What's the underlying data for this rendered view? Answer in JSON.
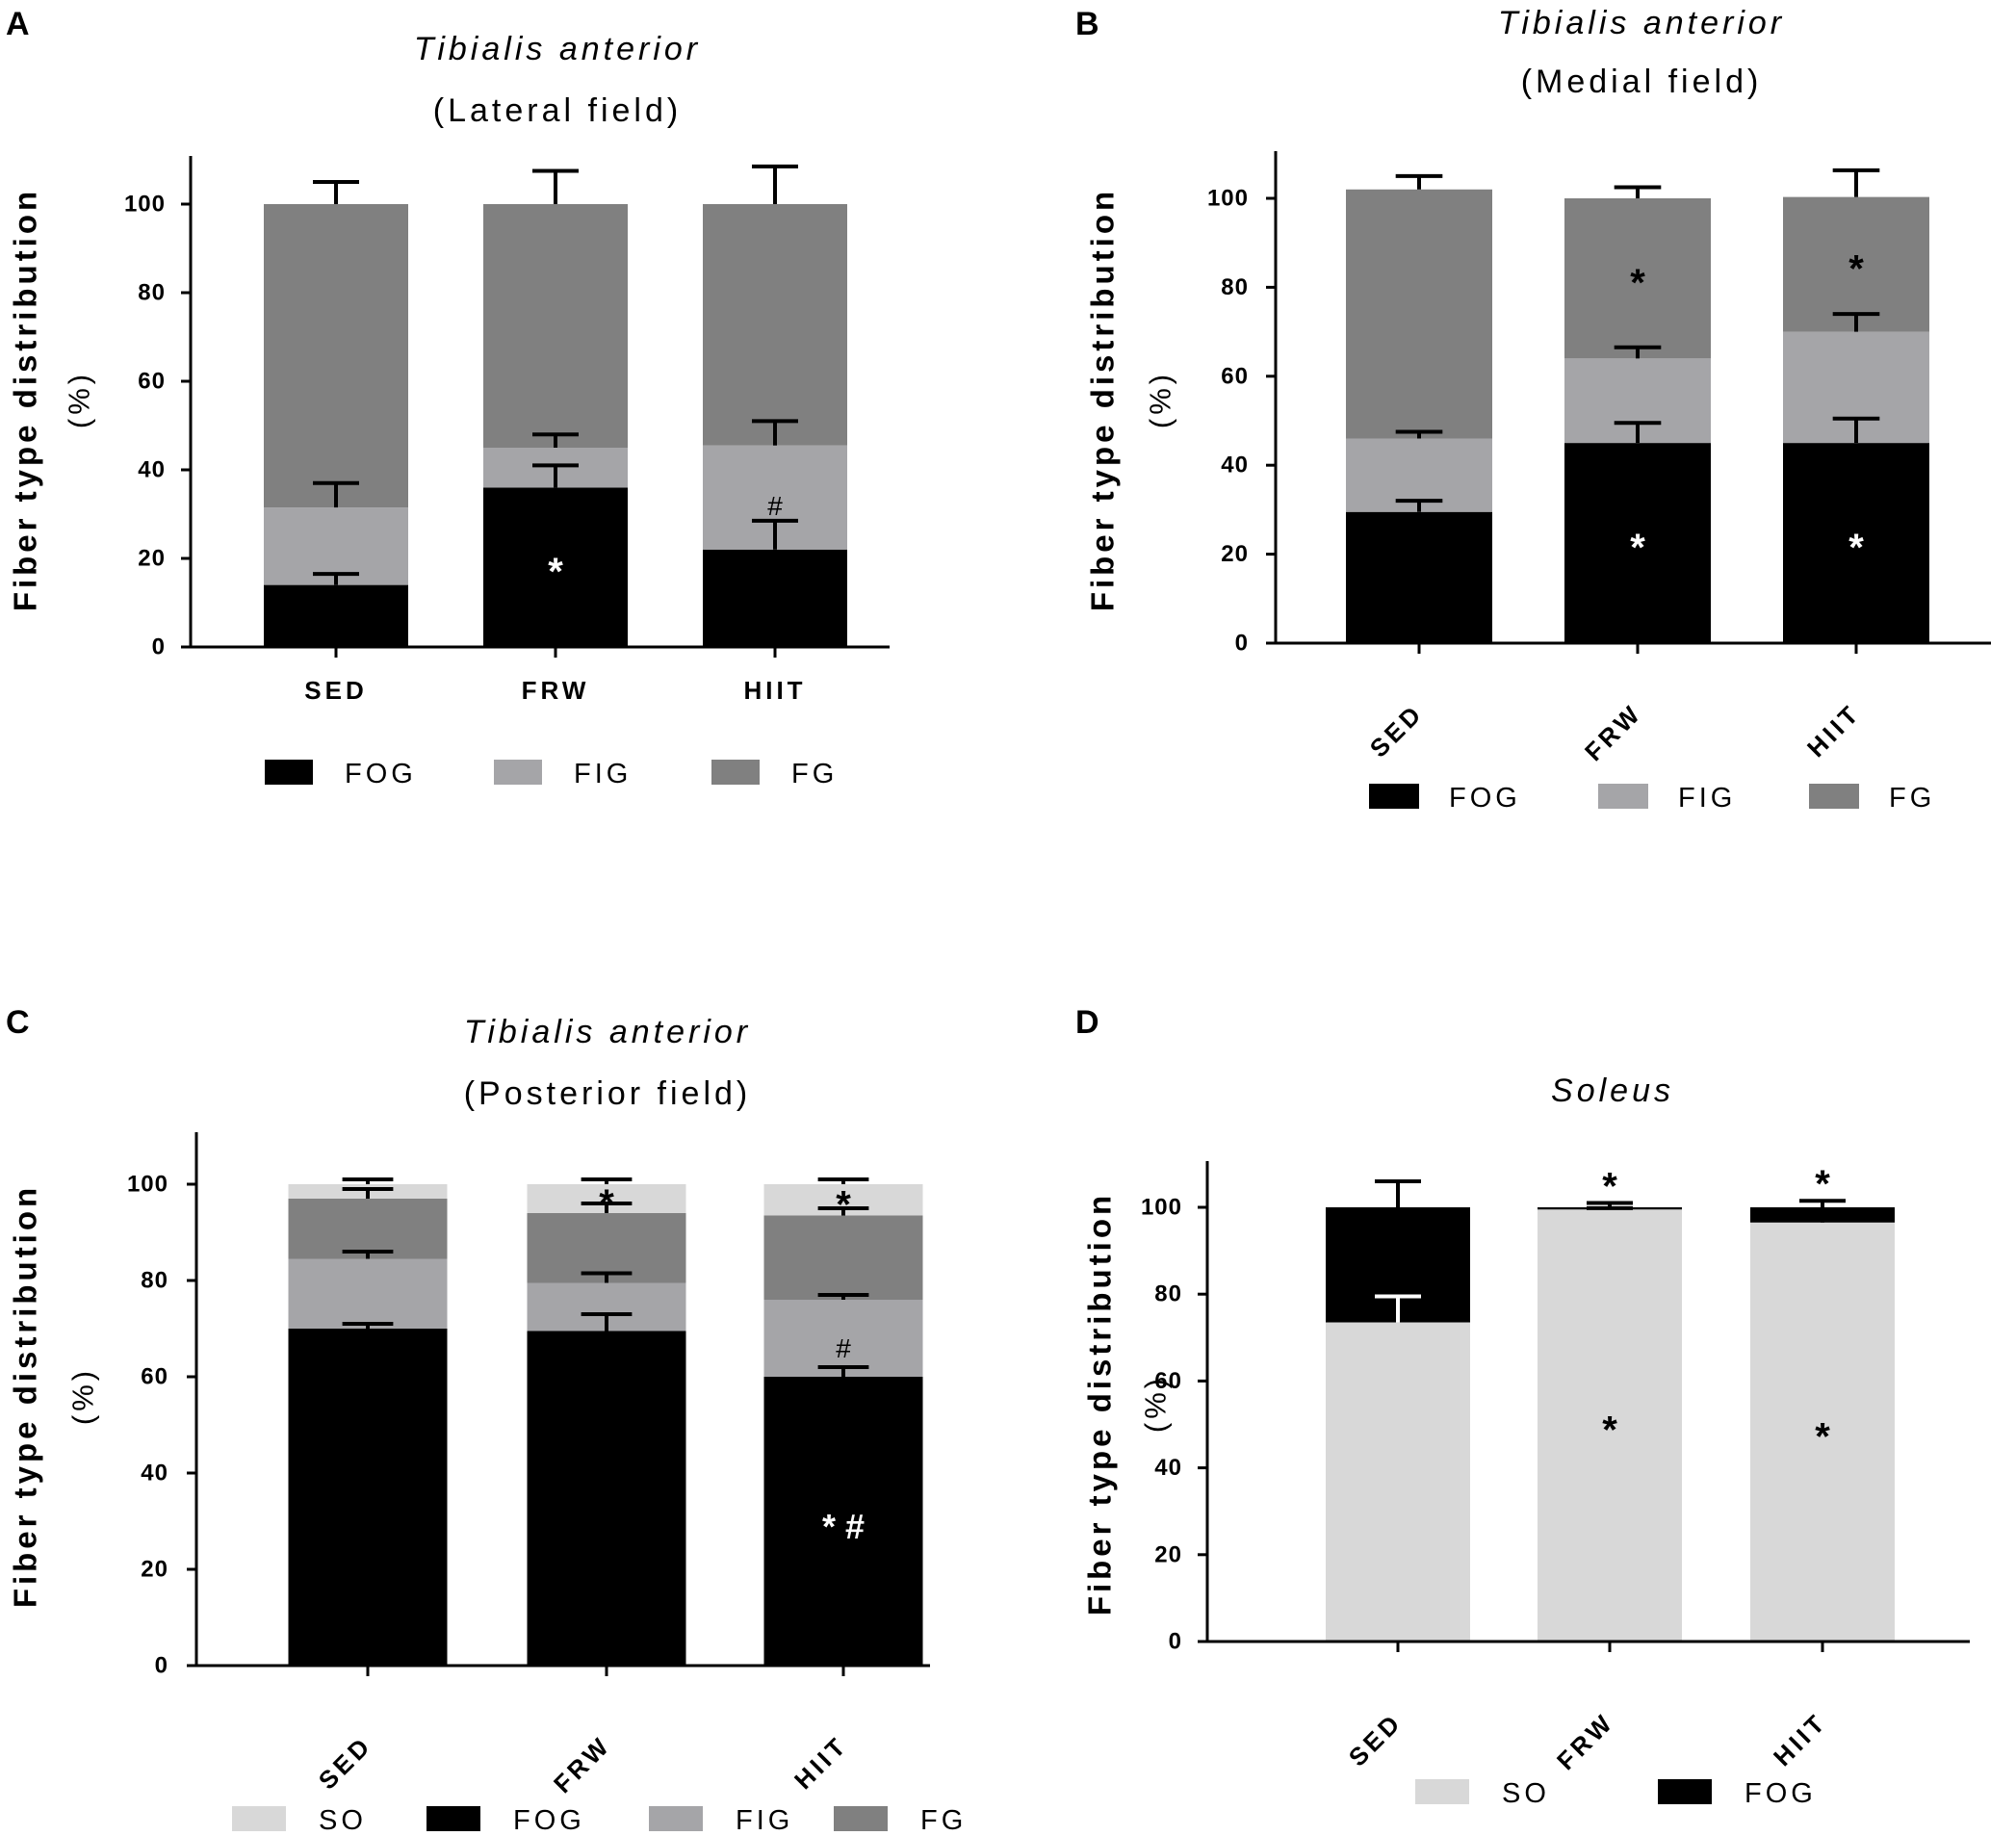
{
  "colors": {
    "SO": "#d8d8d8",
    "FOG": "#000000",
    "FIG": "#a5a5a8",
    "FG": "#808080",
    "err_dark": "#000000",
    "err_light": "#ffffff"
  },
  "chart_data": [
    {
      "panel": "A",
      "type": "bar",
      "stacked": true,
      "title": "Tibialis anterior",
      "subtitle": "(Lateral field)",
      "ylabel": "Fiber type distribution",
      "ylabel_unit": "(%)",
      "ylim": [
        0,
        110
      ],
      "yticks": [
        0,
        20,
        40,
        60,
        80,
        100
      ],
      "tick_labels": [
        "0",
        "20",
        "40",
        "60",
        "80",
        "100"
      ],
      "categories": [
        "SED",
        "FRW",
        "HIIT"
      ],
      "rotated_labels": false,
      "legend": [
        "FOG",
        "FIG",
        "FG"
      ],
      "series": [
        {
          "name": "FOG",
          "values": [
            14,
            36,
            22
          ],
          "errors": [
            2.5,
            5,
            6.5
          ]
        },
        {
          "name": "FIG",
          "values": [
            17.5,
            9,
            23.5
          ],
          "errors": [
            5.5,
            3,
            5.5
          ]
        },
        {
          "name": "FG",
          "values": [
            68.5,
            55,
            54.5
          ],
          "errors": [
            5,
            7.5,
            8.5
          ]
        }
      ],
      "annotations": [
        {
          "category": "FRW",
          "series": "FOG",
          "text": "*"
        },
        {
          "category": "HIIT",
          "series": "FIG",
          "text": "#"
        }
      ]
    },
    {
      "panel": "B",
      "type": "bar",
      "stacked": true,
      "title": "Tibialis anterior",
      "subtitle": "(Medial field)",
      "ylabel": "Fiber type distribution",
      "ylabel_unit": "(%)",
      "ylim": [
        0,
        110
      ],
      "yticks": [
        0,
        20,
        40,
        60,
        80,
        100
      ],
      "tick_labels": [
        "0",
        "20",
        "40",
        "60",
        "80",
        "100"
      ],
      "categories": [
        "SED",
        "FRW",
        "HIIT"
      ],
      "rotated_labels": true,
      "legend": [
        "FOG",
        "FIG",
        "FG"
      ],
      "series": [
        {
          "name": "FOG",
          "values": [
            29.5,
            45,
            45
          ],
          "errors": [
            2.5,
            4.5,
            5.5
          ]
        },
        {
          "name": "FIG",
          "values": [
            16.5,
            19,
            25
          ],
          "errors": [
            1.5,
            2.5,
            4
          ]
        },
        {
          "name": "FG",
          "values": [
            56,
            36,
            30.3
          ],
          "errors": [
            3,
            2.5,
            6
          ]
        }
      ],
      "annotations": [
        {
          "category": "FRW",
          "series": "FOG",
          "text": "*"
        },
        {
          "category": "HIIT",
          "series": "FOG",
          "text": "*"
        },
        {
          "category": "FRW",
          "series": "FG",
          "text": "*"
        },
        {
          "category": "HIIT",
          "series": "FG",
          "text": "*"
        }
      ]
    },
    {
      "panel": "C",
      "type": "bar",
      "stacked": true,
      "title": "Tibialis anterior",
      "subtitle": "(Posterior field)",
      "ylabel": "Fiber type distribution",
      "ylabel_unit": "(%)",
      "ylim": [
        0,
        110
      ],
      "yticks": [
        0,
        20,
        40,
        60,
        80,
        100
      ],
      "tick_labels": [
        "0",
        "20",
        "40",
        "60",
        "80",
        "100"
      ],
      "categories": [
        "SED",
        "FRW",
        "HIIT"
      ],
      "rotated_labels": true,
      "legend": [
        "SO",
        "FOG",
        "FIG",
        "FG"
      ],
      "series": [
        {
          "name": "FOG",
          "values": [
            70,
            69.5,
            60
          ],
          "errors": [
            1,
            3.5,
            2
          ]
        },
        {
          "name": "FIG",
          "values": [
            14.5,
            10,
            16
          ],
          "errors": [
            1.5,
            2,
            1
          ]
        },
        {
          "name": "FG",
          "values": [
            12.5,
            14.5,
            17.5
          ],
          "errors": [
            2,
            2,
            1.5
          ]
        },
        {
          "name": "SO",
          "values": [
            3,
            6,
            6.5
          ],
          "errors": [
            1,
            1,
            1
          ]
        }
      ],
      "annotations": [
        {
          "category": "FRW",
          "series": "SO",
          "text": "*"
        },
        {
          "category": "HIIT",
          "series": "SO",
          "text": "*"
        },
        {
          "category": "HIIT",
          "series": "FIG",
          "text": "#"
        },
        {
          "category": "HIIT",
          "series": "FOG",
          "text": "* #"
        }
      ]
    },
    {
      "panel": "D",
      "type": "bar",
      "stacked": true,
      "title": "Soleus",
      "subtitle": "",
      "ylabel": "Fiber type distribution",
      "ylabel_unit": "(%)",
      "ylim": [
        0,
        110
      ],
      "yticks": [
        0,
        20,
        40,
        60,
        80,
        100
      ],
      "tick_labels": [
        "0",
        "20",
        "40",
        "60",
        "80",
        "100"
      ],
      "categories": [
        "SED",
        "FRW",
        "HIIT"
      ],
      "rotated_labels": true,
      "legend": [
        "SO",
        "FOG"
      ],
      "series": [
        {
          "name": "SO",
          "values": [
            73.5,
            99.5,
            96.5
          ],
          "errors": [
            6,
            0.3,
            1
          ]
        },
        {
          "name": "FOG",
          "values": [
            26.5,
            0.5,
            3.5
          ],
          "errors": [
            6,
            1,
            1.5
          ]
        }
      ],
      "annotations": [
        {
          "category": "FRW",
          "series": "SO",
          "text": "*"
        },
        {
          "category": "HIIT",
          "series": "SO",
          "text": "*"
        },
        {
          "category": "FRW",
          "series": "FOG",
          "text": "*"
        },
        {
          "category": "HIIT",
          "series": "FOG",
          "text": "*"
        }
      ]
    }
  ]
}
